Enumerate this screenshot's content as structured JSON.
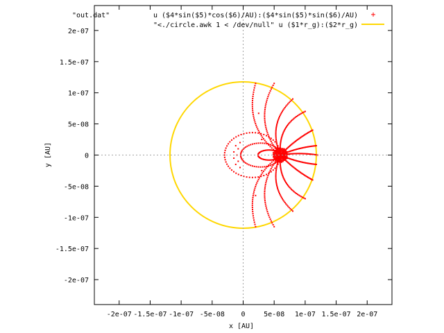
{
  "chart_data": {
    "type": "scatter",
    "title": "",
    "source_label": "\"out.dat\"",
    "xlabel": "x [AU]",
    "ylabel": "y [AU]",
    "xlim": [
      -2.4e-07,
      2.4e-07
    ],
    "ylim": [
      -2.4e-07,
      2.4e-07
    ],
    "grid": false,
    "zero_axes": true,
    "legend_position": "top-right",
    "x_ticks": [
      {
        "value": -2e-07,
        "label": "-2e-07"
      },
      {
        "value": -1.5e-07,
        "label": "-1.5e-07"
      },
      {
        "value": -1e-07,
        "label": "-1e-07"
      },
      {
        "value": -5e-08,
        "label": "-5e-08"
      },
      {
        "value": 0,
        "label": "0"
      },
      {
        "value": 5e-08,
        "label": "5e-08"
      },
      {
        "value": 1e-07,
        "label": "1e-07"
      },
      {
        "value": 1.5e-07,
        "label": "1.5e-07"
      },
      {
        "value": 2e-07,
        "label": "2e-07"
      }
    ],
    "y_ticks": [
      {
        "value": -2e-07,
        "label": "-2e-07"
      },
      {
        "value": -1.5e-07,
        "label": "-1.5e-07"
      },
      {
        "value": -1e-07,
        "label": "-1e-07"
      },
      {
        "value": -5e-08,
        "label": "-5e-08"
      },
      {
        "value": 0,
        "label": "0"
      },
      {
        "value": 5e-08,
        "label": "5e-08"
      },
      {
        "value": 1e-07,
        "label": "1e-07"
      },
      {
        "value": 1.5e-07,
        "label": "1.5e-07"
      },
      {
        "value": 2e-07,
        "label": "2e-07"
      }
    ],
    "series": [
      {
        "name": "u ($4*sin($5)*cos($6)/AU):($4*sin($5)*sin($6)/AU)",
        "style": "points",
        "color": "#ff0000",
        "focus": [
          6e-08,
          0
        ],
        "ray_endpoints": [
          [
            2e-08,
            1.15e-07
          ],
          [
            5e-08,
            1.15e-07
          ],
          [
            8e-08,
            9e-08
          ],
          [
            1e-07,
            7e-08
          ],
          [
            1.12e-07,
            4e-08
          ],
          [
            1.18e-07,
            1.5e-08
          ],
          [
            1.2e-07,
            0
          ],
          [
            1.18e-07,
            -1.5e-08
          ],
          [
            1.12e-07,
            -4e-08
          ],
          [
            1e-07,
            -7e-08
          ],
          [
            8e-08,
            -9e-08
          ],
          [
            5e-08,
            -1.15e-07
          ],
          [
            2e-08,
            -1.15e-07
          ]
        ],
        "points": [
          [
            -1.5e-08,
            5e-09
          ],
          [
            -1.5e-08,
            -5e-09
          ],
          [
            -1.2e-08,
            1.5e-08
          ],
          [
            -1.2e-08,
            -1.5e-08
          ],
          [
            -1e-08,
            0
          ],
          [
            -8e-09,
            1e-08
          ],
          [
            -8e-09,
            -1e-08
          ],
          [
            -5e-09,
            2e-08
          ],
          [
            -5e-09,
            -2e-08
          ],
          [
            2e-08,
            -6.5e-08
          ],
          [
            2.5e-08,
            6.7e-08
          ],
          [
            3e-08,
            -2.5e-08
          ],
          [
            3e-08,
            2.5e-08
          ]
        ]
      },
      {
        "name": "\"<./circle.awk 1 < /dev/null\" u ($1*r_g):($2*r_g)",
        "style": "lines",
        "color": "#ffd700",
        "center": [
          0,
          0
        ],
        "radius": 1.18e-07
      }
    ]
  }
}
